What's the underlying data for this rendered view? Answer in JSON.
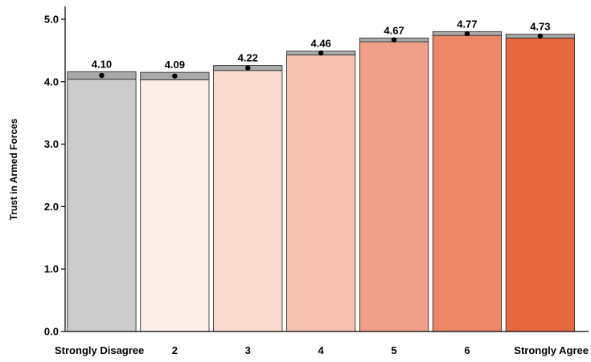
{
  "chart_data": {
    "type": "bar",
    "categories": [
      "Strongly Disagree",
      "2",
      "3",
      "4",
      "5",
      "6",
      "Strongly Agree"
    ],
    "values": [
      4.1,
      4.09,
      4.22,
      4.46,
      4.67,
      4.77,
      4.73
    ],
    "ci_upper": [
      4.16,
      4.15,
      4.26,
      4.49,
      4.7,
      4.8,
      4.76
    ],
    "ci_lower": [
      4.04,
      4.03,
      4.18,
      4.43,
      4.64,
      4.74,
      4.7
    ],
    "data_labels": [
      "4.10",
      "4.09",
      "4.22",
      "4.46",
      "4.67",
      "4.77",
      "4.73"
    ],
    "bar_colors": [
      "#cccccc",
      "#fdeee8",
      "#f9dccf",
      "#f5c1af",
      "#f0a088",
      "#ec8767",
      "#e8693e"
    ],
    "ci_color": "#a9a9a9",
    "title": "",
    "xlabel": "",
    "ylabel": "Trust in Armed Forces",
    "ylim": [
      0,
      5.0
    ],
    "yticks": [
      "0.0",
      "1.0",
      "2.0",
      "3.0",
      "4.0",
      "5.0"
    ],
    "grid": false,
    "legend": "none"
  }
}
